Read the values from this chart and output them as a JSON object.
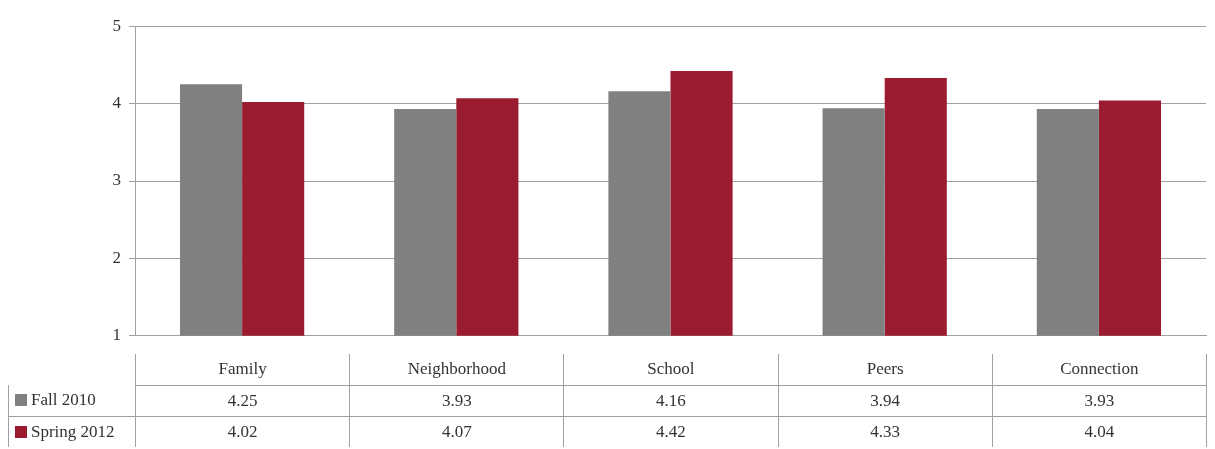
{
  "chart_data": {
    "type": "bar",
    "categories": [
      "Family",
      "Neighborhood",
      "School",
      "Peers",
      "Connection"
    ],
    "series": [
      {
        "name": "Fall 2010",
        "color": "#808080",
        "values": [
          4.25,
          3.93,
          4.16,
          3.94,
          3.93
        ]
      },
      {
        "name": "Spring 2012",
        "color": "#9b1b30",
        "values": [
          4.02,
          4.07,
          4.42,
          4.33,
          4.04
        ]
      }
    ],
    "ylim": [
      1,
      5
    ],
    "yticks": [
      1,
      2,
      3,
      4,
      5
    ],
    "grid": "y",
    "legend": "bottom left",
    "data_labels": true
  }
}
